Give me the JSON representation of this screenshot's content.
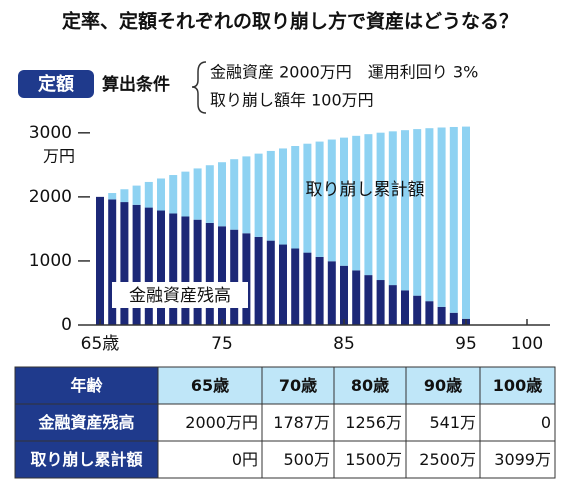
{
  "header": {
    "title": "定率、定額それぞれの取り崩し方で資産はどうなる？",
    "badge": "定額",
    "conditions_label": "算出条件",
    "conditions": [
      "金融資産 2000万円　運用利回り 3%",
      "取り崩し額年 100万円"
    ]
  },
  "chart_data": {
    "type": "bar",
    "stacked": true,
    "y_unit": "万円",
    "x": [
      65,
      66,
      67,
      68,
      69,
      70,
      71,
      72,
      73,
      74,
      75,
      76,
      77,
      78,
      79,
      80,
      81,
      82,
      83,
      84,
      85,
      86,
      87,
      88,
      89,
      90,
      91,
      92,
      93,
      94,
      95
    ],
    "series": [
      {
        "name": "金融資産残高",
        "color": "#1c2877",
        "values": [
          2000,
          1960,
          1919,
          1876,
          1833,
          1787,
          1741,
          1694,
          1644,
          1594,
          1541,
          1488,
          1432,
          1375,
          1317,
          1256,
          1194,
          1130,
          1063,
          995,
          925,
          853,
          779,
          702,
          623,
          541,
          458,
          372,
          283,
          191,
          97
        ]
      },
      {
        "name": "取り崩し累計額",
        "color": "#8ed2f2",
        "values": [
          0,
          100,
          200,
          300,
          400,
          500,
          600,
          700,
          800,
          900,
          1000,
          1100,
          1200,
          1300,
          1400,
          1500,
          1600,
          1700,
          1800,
          1900,
          2000,
          2100,
          2200,
          2300,
          2400,
          2500,
          2600,
          2700,
          2800,
          2900,
          3000
        ]
      }
    ],
    "xlim": [
      65,
      100
    ],
    "xticks": [
      {
        "value": 65,
        "label": "65歳"
      },
      75,
      85,
      95,
      100
    ],
    "ylim": [
      0,
      3200
    ],
    "yticks": [
      0,
      1000,
      2000,
      3000
    ]
  },
  "table": {
    "header": [
      "年齢",
      "65歳",
      "70歳",
      "80歳",
      "90歳",
      "100歳"
    ],
    "rows": [
      [
        "金融資産残高",
        "2000万円",
        "1787万",
        "1256万",
        "541万",
        "0"
      ],
      [
        "取り崩し累計額",
        "0円",
        "500万",
        "1500万",
        "2500万",
        "3099万"
      ]
    ]
  }
}
